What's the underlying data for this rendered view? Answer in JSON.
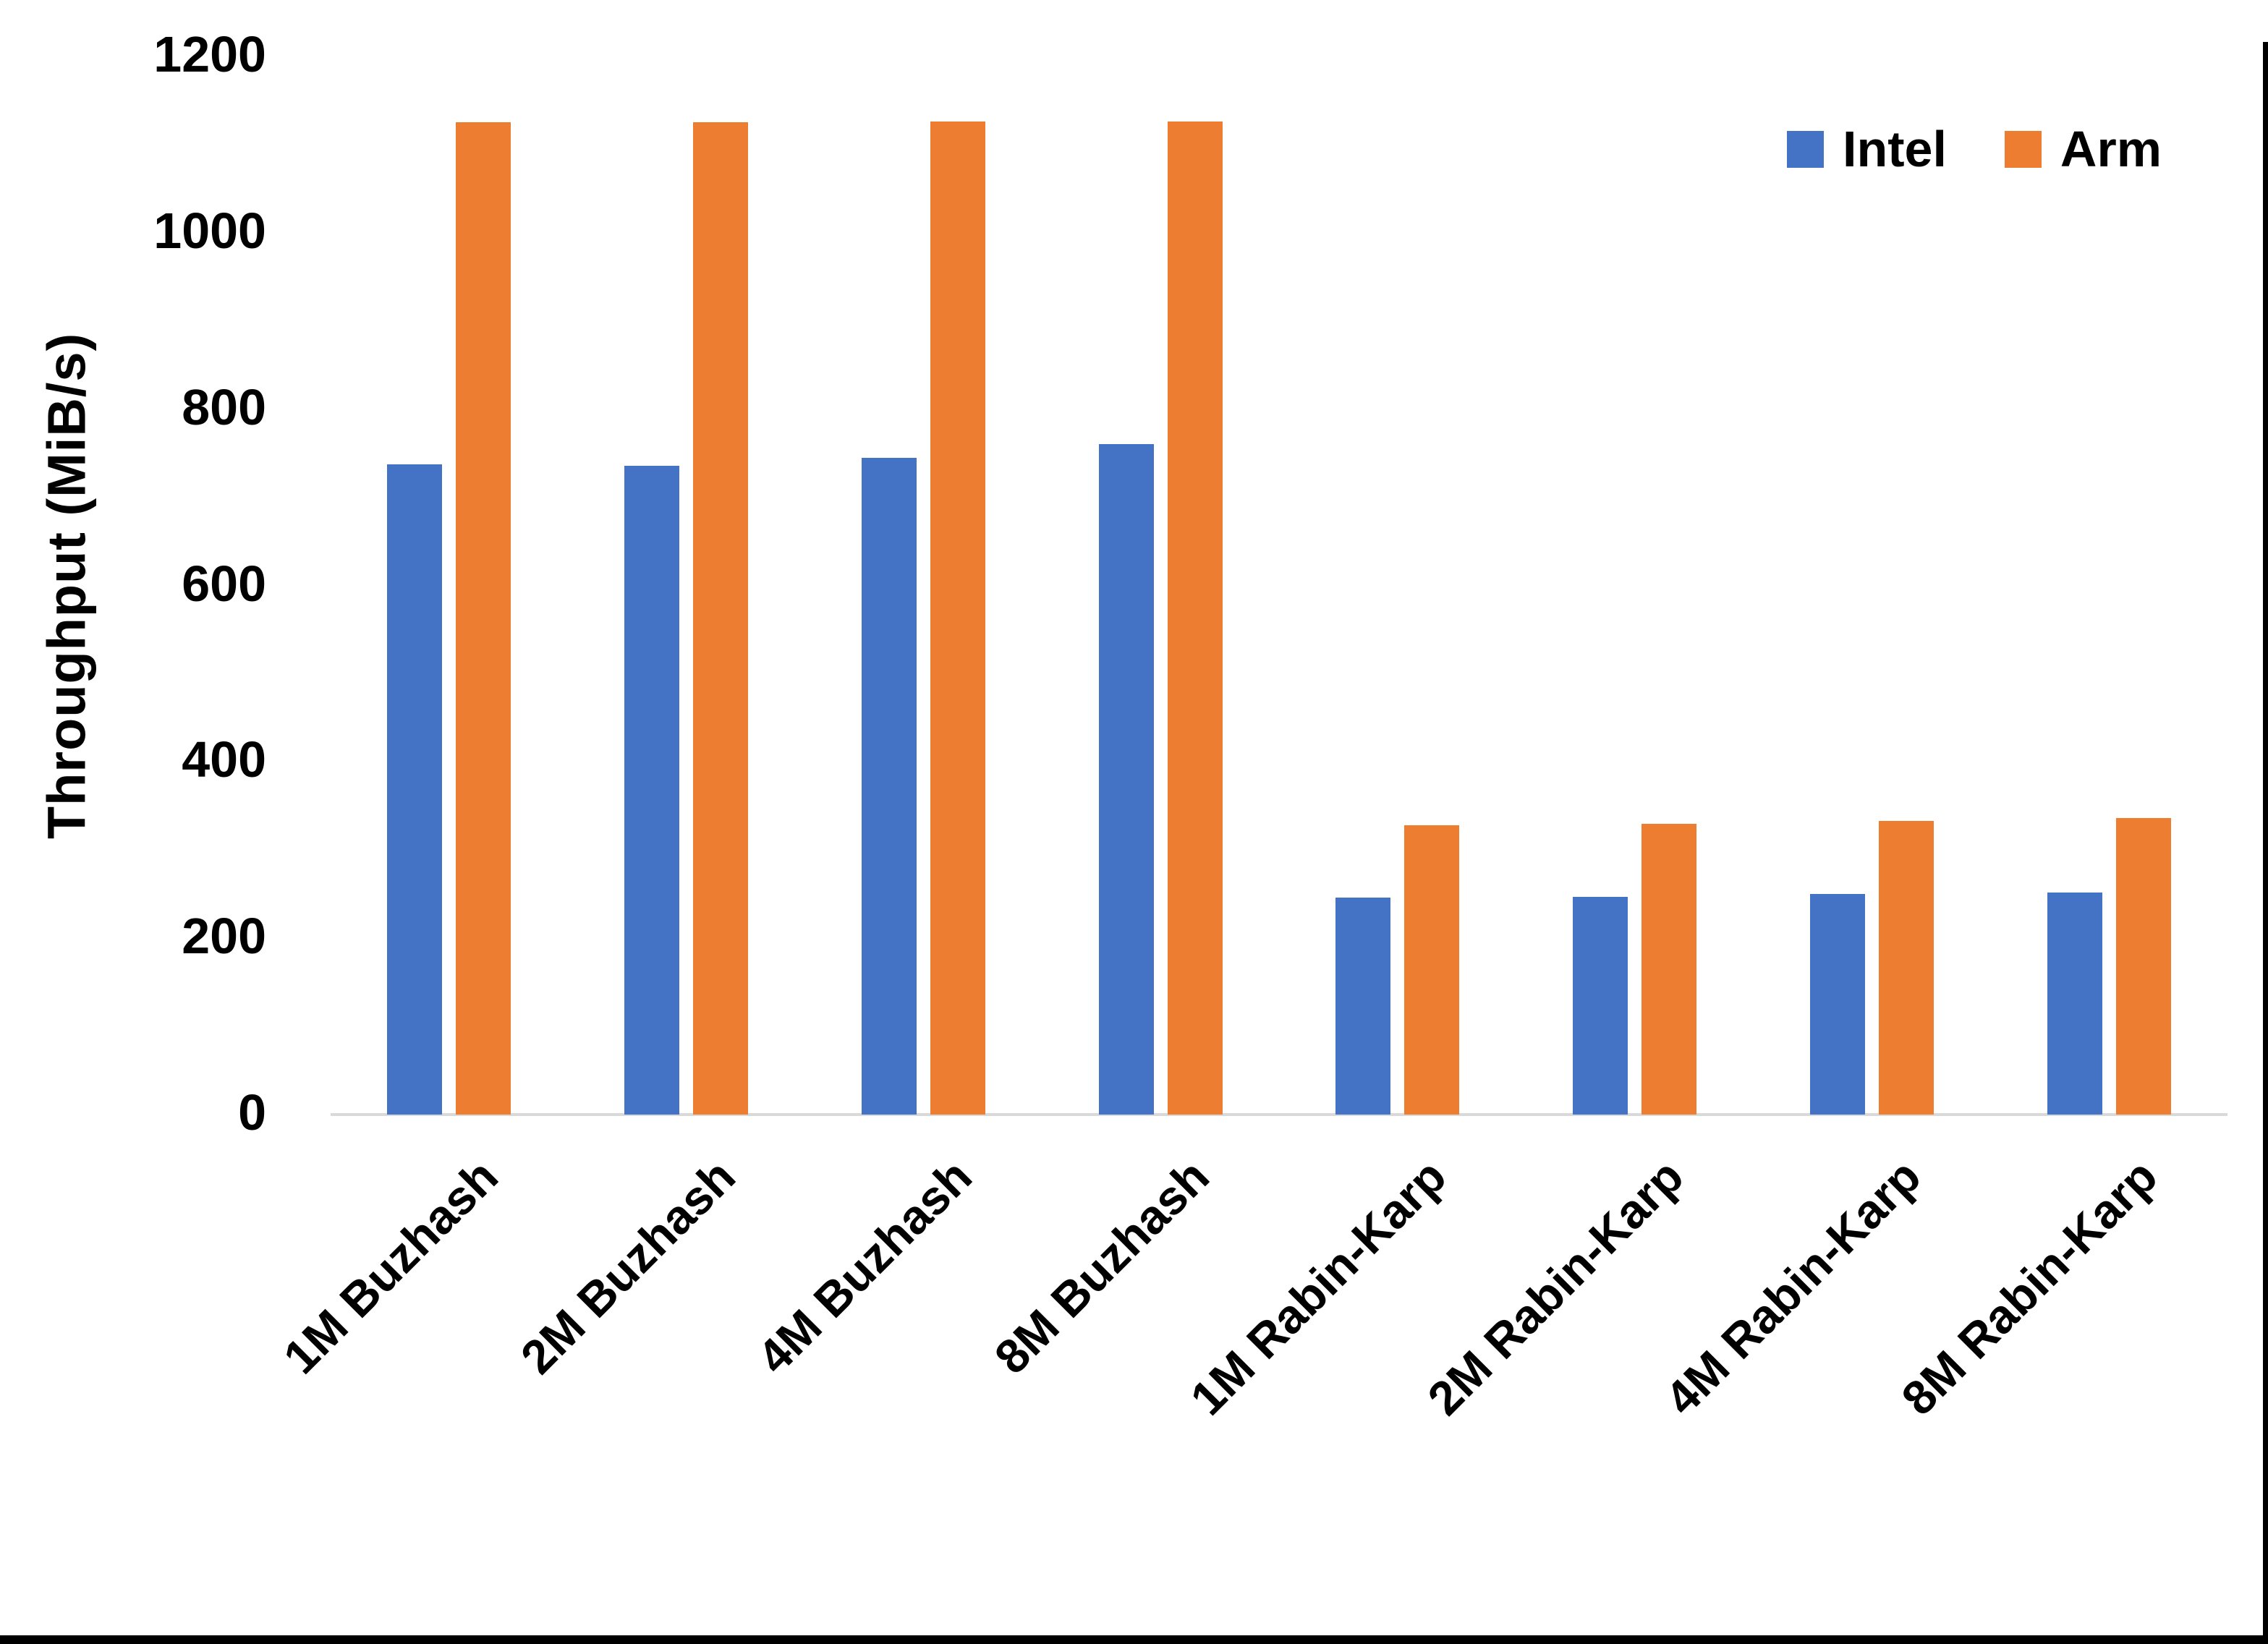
{
  "chart_data": {
    "type": "bar",
    "title": "",
    "xlabel": "",
    "ylabel": "Throughput (MiB/s)",
    "ylim": [
      0,
      1200
    ],
    "ytick_step": 200,
    "grid": false,
    "legend_position": "top-right",
    "categories": [
      "1M Buzhash",
      "2M Buzhash",
      "4M Buzhash",
      "8M Buzhash",
      "1M Rabin-Karp",
      "2M Rabin-Karp",
      "4M Rabin-Karp",
      "8M Rabin-Karp"
    ],
    "series": [
      {
        "name": "Intel",
        "color": "#4472C4",
        "values": [
          737,
          736,
          745,
          760,
          246,
          247,
          250,
          252
        ]
      },
      {
        "name": "Arm",
        "color": "#ED7D31",
        "values": [
          1125,
          1125,
          1126,
          1126,
          328,
          330,
          333,
          336
        ]
      }
    ],
    "y_tick_labels": [
      "0",
      "200",
      "400",
      "600",
      "800",
      "1000",
      "1200"
    ],
    "axis_line_color": "#D9D9D9",
    "text_color": "#000000"
  }
}
